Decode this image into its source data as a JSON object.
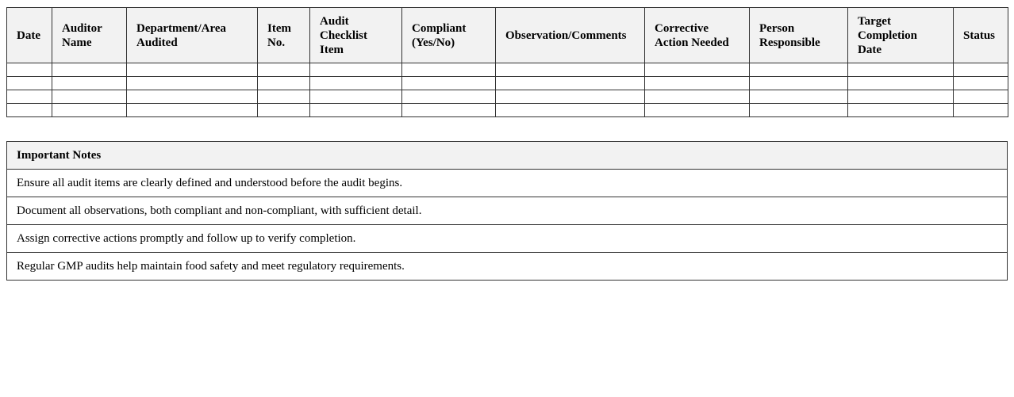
{
  "audit_table": {
    "headers": [
      "Date",
      "Auditor Name",
      "Department/Area Audited",
      "Item No.",
      "Audit Checklist Item",
      "Compliant (Yes/No)",
      "Observation/Comments",
      "Corrective Action Needed",
      "Person Responsible",
      "Target Completion Date",
      "Status"
    ],
    "empty_rows": 4
  },
  "notes": {
    "title": "Important Notes",
    "items": [
      "Ensure all audit items are clearly defined and understood before the audit begins.",
      "Document all observations, both compliant and non-compliant, with sufficient detail.",
      "Assign corrective actions promptly and follow up to verify completion.",
      "Regular GMP audits help maintain food safety and meet regulatory requirements."
    ]
  }
}
